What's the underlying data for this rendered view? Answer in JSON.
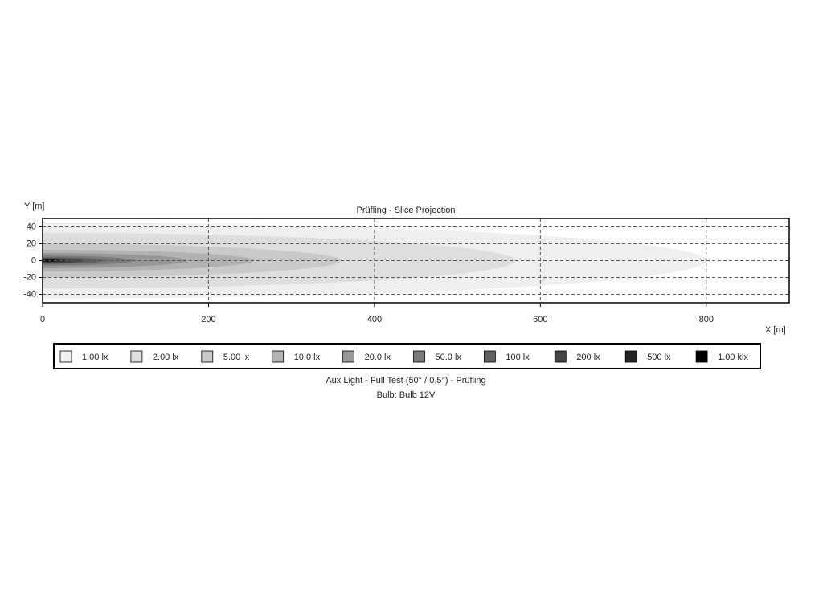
{
  "chart_data": {
    "type": "isolux",
    "title": "Prüfling - Slice Projection",
    "x_label": "X [m]",
    "y_label": "Y [m]",
    "caption": [
      "Aux Light - Full Test (50° / 0.5°) - Prüfling",
      "Bulb: Bulb 12V"
    ],
    "xlim": [
      0,
      900
    ],
    "ylim": [
      -50,
      50
    ],
    "xticks": [
      0,
      200,
      400,
      600,
      800
    ],
    "yticks": [
      40,
      20,
      0,
      -20,
      -40
    ],
    "grid": true,
    "series": [
      {
        "name": "1.00 lx",
        "color": "#efefef",
        "reach": 800,
        "half_width": 45
      },
      {
        "name": "2.00 lx",
        "color": "#dedede",
        "reach": 570,
        "half_width": 33
      },
      {
        "name": "5.00 lx",
        "color": "#c9c9c9",
        "reach": 360,
        "half_width": 20
      },
      {
        "name": "10.0 lx",
        "color": "#b2b2b2",
        "reach": 255,
        "half_width": 13
      },
      {
        "name": "20.0 lx",
        "color": "#979797",
        "reach": 175,
        "half_width": 9
      },
      {
        "name": "50.0 lx",
        "color": "#7b7b7b",
        "reach": 110,
        "half_width": 6
      },
      {
        "name": "100 lx",
        "color": "#606060",
        "reach": 75,
        "half_width": 4
      },
      {
        "name": "200 lx",
        "color": "#444444",
        "reach": 50,
        "half_width": 3
      },
      {
        "name": "500 lx",
        "color": "#252525",
        "reach": 30,
        "half_width": 1.5
      },
      {
        "name": "1.00 klx",
        "color": "#000000",
        "reach": 15,
        "half_width": 1
      }
    ]
  }
}
